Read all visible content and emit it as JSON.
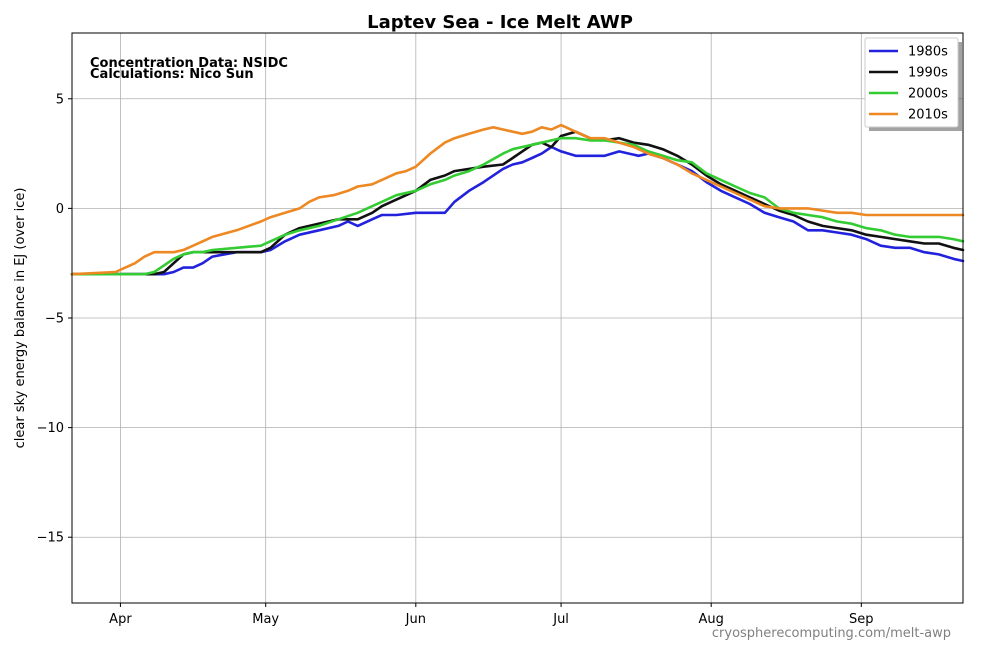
{
  "chart_data": {
    "type": "line",
    "title": "Laptev Sea - Ice Melt AWP",
    "xlabel": "",
    "ylabel": "clear sky energy balance in EJ (over ice)",
    "ylim": [
      -18,
      8
    ],
    "xlim": [
      81,
      265
    ],
    "x_unit": "day of year",
    "yticks": [
      -15,
      -10,
      -5,
      0,
      5
    ],
    "ytick_labels": [
      "−15",
      "−10",
      "−5",
      "0",
      "5"
    ],
    "xticks": [
      {
        "label": "Apr",
        "day": 91
      },
      {
        "label": "May",
        "day": 121
      },
      {
        "label": "Jun",
        "day": 152
      },
      {
        "label": "Jul",
        "day": 182
      },
      {
        "label": "Aug",
        "day": 213
      },
      {
        "label": "Sep",
        "day": 244
      }
    ],
    "grid": true,
    "legend_position": "top-right",
    "annotations": [
      "Concentration Data: NSIDC",
      "Calculations: Nico Sun"
    ],
    "credit": "cryospherecomputing.com/melt-awp",
    "series": [
      {
        "name": "1980s",
        "color": "#2222dd",
        "x": [
          81,
          90,
          100,
          102,
          104,
          106,
          108,
          110,
          115,
          120,
          122,
          125,
          128,
          132,
          136,
          138,
          140,
          143,
          145,
          148,
          152,
          158,
          160,
          163,
          166,
          170,
          172,
          174,
          176,
          178,
          180,
          182,
          185,
          188,
          191,
          194,
          196,
          198,
          200,
          203,
          206,
          209,
          212,
          215,
          218,
          221,
          224,
          227,
          230,
          233,
          236,
          239,
          242,
          245,
          248,
          251,
          254,
          257,
          260,
          263,
          265
        ],
        "y": [
          -3.0,
          -3.0,
          -3.0,
          -2.9,
          -2.7,
          -2.7,
          -2.5,
          -2.2,
          -2.0,
          -2.0,
          -1.9,
          -1.5,
          -1.2,
          -1.0,
          -0.8,
          -0.6,
          -0.8,
          -0.5,
          -0.3,
          -0.3,
          -0.2,
          -0.2,
          0.3,
          0.8,
          1.2,
          1.8,
          2.0,
          2.1,
          2.3,
          2.5,
          2.8,
          2.6,
          2.4,
          2.4,
          2.4,
          2.6,
          2.5,
          2.4,
          2.5,
          2.3,
          2.0,
          1.7,
          1.2,
          0.8,
          0.5,
          0.2,
          -0.2,
          -0.4,
          -0.6,
          -1.0,
          -1.0,
          -1.1,
          -1.2,
          -1.4,
          -1.7,
          -1.8,
          -1.8,
          -2.0,
          -2.1,
          -2.3,
          -2.4
        ]
      },
      {
        "name": "1990s",
        "color": "#111111",
        "x": [
          81,
          90,
          98,
          100,
          102,
          104,
          106,
          108,
          110,
          115,
          120,
          122,
          125,
          128,
          132,
          136,
          140,
          143,
          145,
          148,
          152,
          155,
          158,
          160,
          163,
          166,
          170,
          172,
          174,
          176,
          178,
          180,
          182,
          185,
          188,
          191,
          194,
          197,
          200,
          203,
          206,
          209,
          212,
          215,
          218,
          221,
          224,
          227,
          230,
          233,
          236,
          239,
          242,
          245,
          248,
          251,
          254,
          257,
          260,
          263,
          265
        ],
        "y": [
          -3.0,
          -3.0,
          -3.0,
          -2.9,
          -2.5,
          -2.1,
          -2.0,
          -2.0,
          -2.0,
          -2.0,
          -2.0,
          -1.8,
          -1.2,
          -0.9,
          -0.7,
          -0.5,
          -0.5,
          -0.2,
          0.1,
          0.4,
          0.8,
          1.3,
          1.5,
          1.7,
          1.8,
          1.9,
          2.0,
          2.3,
          2.6,
          2.9,
          3.0,
          2.8,
          3.3,
          3.5,
          3.2,
          3.1,
          3.2,
          3.0,
          2.9,
          2.7,
          2.4,
          2.0,
          1.5,
          1.1,
          0.8,
          0.5,
          0.2,
          -0.1,
          -0.3,
          -0.6,
          -0.8,
          -0.9,
          -1.0,
          -1.2,
          -1.3,
          -1.4,
          -1.5,
          -1.6,
          -1.6,
          -1.8,
          -1.9
        ]
      },
      {
        "name": "2000s",
        "color": "#33cc33",
        "x": [
          81,
          90,
          96,
          98,
          100,
          102,
          104,
          106,
          108,
          110,
          115,
          120,
          125,
          128,
          132,
          136,
          140,
          143,
          145,
          148,
          152,
          155,
          158,
          160,
          163,
          166,
          170,
          172,
          174,
          176,
          178,
          180,
          182,
          185,
          188,
          191,
          194,
          197,
          200,
          203,
          206,
          209,
          212,
          215,
          218,
          221,
          224,
          227,
          230,
          233,
          236,
          239,
          242,
          245,
          248,
          251,
          254,
          257,
          260,
          263,
          265
        ],
        "y": [
          -3.0,
          -3.0,
          -3.0,
          -2.9,
          -2.6,
          -2.3,
          -2.1,
          -2.0,
          -2.0,
          -1.9,
          -1.8,
          -1.7,
          -1.2,
          -1.0,
          -0.8,
          -0.5,
          -0.2,
          0.1,
          0.3,
          0.6,
          0.8,
          1.1,
          1.3,
          1.5,
          1.7,
          2.0,
          2.5,
          2.7,
          2.8,
          2.9,
          3.0,
          3.1,
          3.2,
          3.2,
          3.1,
          3.1,
          3.0,
          2.9,
          2.6,
          2.4,
          2.2,
          2.1,
          1.6,
          1.3,
          1.0,
          0.7,
          0.5,
          0.0,
          -0.2,
          -0.3,
          -0.4,
          -0.6,
          -0.7,
          -0.9,
          -1.0,
          -1.2,
          -1.3,
          -1.3,
          -1.3,
          -1.4,
          -1.5
        ]
      },
      {
        "name": "2010s",
        "color": "#ee8822",
        "x": [
          81,
          90,
          92,
          94,
          96,
          98,
          100,
          102,
          104,
          106,
          108,
          110,
          115,
          120,
          122,
          125,
          128,
          130,
          132,
          135,
          138,
          140,
          143,
          145,
          148,
          150,
          152,
          155,
          158,
          160,
          163,
          166,
          168,
          170,
          172,
          174,
          176,
          178,
          180,
          182,
          185,
          188,
          191,
          194,
          197,
          200,
          203,
          206,
          209,
          212,
          215,
          218,
          221,
          224,
          227,
          230,
          233,
          236,
          239,
          242,
          245,
          248,
          251,
          254,
          257,
          260,
          263,
          265
        ],
        "y": [
          -3.0,
          -2.9,
          -2.7,
          -2.5,
          -2.2,
          -2.0,
          -2.0,
          -2.0,
          -1.9,
          -1.7,
          -1.5,
          -1.3,
          -1.0,
          -0.6,
          -0.4,
          -0.2,
          0.0,
          0.3,
          0.5,
          0.6,
          0.8,
          1.0,
          1.1,
          1.3,
          1.6,
          1.7,
          1.9,
          2.5,
          3.0,
          3.2,
          3.4,
          3.6,
          3.7,
          3.6,
          3.5,
          3.4,
          3.5,
          3.7,
          3.6,
          3.8,
          3.5,
          3.2,
          3.2,
          3.0,
          2.8,
          2.5,
          2.3,
          2.0,
          1.6,
          1.3,
          1.0,
          0.7,
          0.4,
          0.1,
          0.0,
          0.0,
          0.0,
          -0.1,
          -0.2,
          -0.2,
          -0.3,
          -0.3,
          -0.3,
          -0.3,
          -0.3,
          -0.3,
          -0.3,
          -0.3
        ]
      }
    ]
  }
}
